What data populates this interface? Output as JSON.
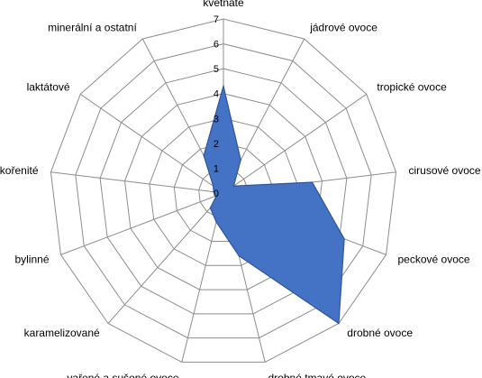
{
  "chart_data": {
    "type": "radar",
    "title": "",
    "categories": [
      "květnaté",
      "jádrové ovoce",
      "tropické ovoce",
      "cirusové ovoce",
      "peckové ovoce",
      "drobné ovoce",
      "drobné tmavé ovoce",
      "vařené a sušené ovoce",
      "karamelizované",
      "bylinné",
      "kořenité",
      "laktátové",
      "minerální a ostatní"
    ],
    "series": [
      {
        "values": [
          4.3,
          1.5,
          0.5,
          3.6,
          5.2,
          7.0,
          2.6,
          1.2,
          0.8,
          0.3,
          0.4,
          0.5,
          1.7
        ]
      }
    ],
    "rlim": [
      0,
      7
    ],
    "ticks": [
      0,
      1,
      2,
      3,
      4,
      5,
      6,
      7
    ],
    "grid": true,
    "legend": "none"
  },
  "colors": {
    "fill": "#4472C4",
    "stroke": "#2F5597",
    "grid": "#8C8C8C",
    "background": "#FFFFFF"
  }
}
